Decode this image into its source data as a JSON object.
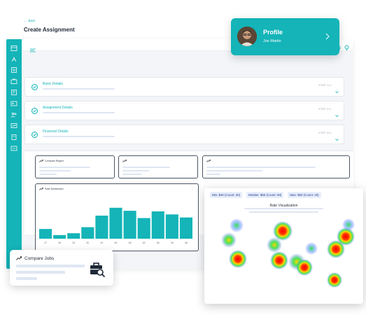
{
  "page": {
    "back_label": "Back",
    "title": "Create Assignment"
  },
  "sidebar": {
    "icons": [
      "dashboard-icon",
      "document-icon",
      "list-icon",
      "briefcase-icon",
      "clipboard-icon",
      "id-card-icon",
      "users-icon",
      "analytics-icon",
      "report-icon",
      "settings-icon"
    ]
  },
  "topbar": {
    "icons": [
      "globe-icon",
      "info-icon"
    ]
  },
  "steps": [
    {
      "title": "Basic Details",
      "count": "STEP 1/4"
    },
    {
      "title": "Assignment Details",
      "count": "STEP 2/4"
    },
    {
      "title": "Financial Details",
      "count": "STEP 3/4"
    }
  ],
  "widgets": {
    "compare_region_label": "Compare Region",
    "rate_distribution_label": "Rate Distribution"
  },
  "chart_data": {
    "type": "bar",
    "title": "Rate Distribution",
    "categories": [
      "27",
      "28",
      "25",
      "30",
      "40",
      "60",
      "55",
      "40",
      "55",
      "34",
      "46"
    ],
    "values": [
      16,
      6,
      9,
      19,
      38,
      51,
      46,
      34,
      45,
      40,
      35
    ],
    "ylim": [
      0,
      60
    ],
    "color": "#14b4b8"
  },
  "profile": {
    "title": "Profile",
    "name": "Joe Martin"
  },
  "compare_jobs": {
    "label": "Compare Jobs"
  },
  "heatmap": {
    "chips": [
      "Min: $40 (Count: 20)",
      "Median: $50 (Count: 80)",
      "Max: $60 (Count: 20)"
    ],
    "title": "Rate Visualization"
  },
  "colors": {
    "accent": "#14b4b8",
    "placeholder": "#dfe6f3"
  }
}
